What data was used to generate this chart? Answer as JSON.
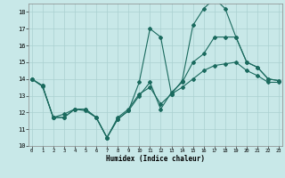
{
  "xlabel": "Humidex (Indice chaleur)",
  "bg_color": "#c8e8e8",
  "grid_color": "#aad0d0",
  "line_color": "#1a6a5e",
  "xlim": [
    0,
    23
  ],
  "ylim": [
    10,
    18.5
  ],
  "yticks": [
    10,
    11,
    12,
    13,
    14,
    15,
    16,
    17,
    18
  ],
  "xticks": [
    0,
    1,
    2,
    3,
    4,
    5,
    6,
    7,
    8,
    9,
    10,
    11,
    12,
    13,
    14,
    15,
    16,
    17,
    18,
    19,
    20,
    21,
    22,
    23
  ],
  "line1_x": [
    0,
    1,
    2,
    3,
    4,
    5,
    6,
    7,
    8,
    9,
    10,
    11,
    12,
    13,
    14,
    15,
    16,
    17,
    18,
    19,
    20,
    21,
    22,
    23
  ],
  "line1_y": [
    14.0,
    13.6,
    11.7,
    11.7,
    12.2,
    12.2,
    11.7,
    10.5,
    11.6,
    12.1,
    13.8,
    17.0,
    16.5,
    13.1,
    13.9,
    17.2,
    18.2,
    18.8,
    18.2,
    16.5,
    15.0,
    14.7,
    14.0,
    13.9
  ],
  "line2_x": [
    0,
    1,
    2,
    3,
    4,
    5,
    6,
    7,
    8,
    9,
    10,
    11,
    12,
    13,
    14,
    15,
    16,
    17,
    18,
    19,
    20,
    21,
    22,
    23
  ],
  "line2_y": [
    14.0,
    13.6,
    11.7,
    11.7,
    12.2,
    12.2,
    11.7,
    10.5,
    11.6,
    12.1,
    13.0,
    13.8,
    12.2,
    13.2,
    13.8,
    15.0,
    15.5,
    16.5,
    16.5,
    16.5,
    15.0,
    14.7,
    14.0,
    13.9
  ],
  "line3_x": [
    0,
    1,
    2,
    3,
    4,
    5,
    6,
    7,
    8,
    9,
    10,
    11,
    12,
    13,
    14,
    15,
    16,
    17,
    18,
    19,
    20,
    21,
    22,
    23
  ],
  "line3_y": [
    14.0,
    13.55,
    11.7,
    11.9,
    12.2,
    12.1,
    11.7,
    10.5,
    11.7,
    12.2,
    13.1,
    13.5,
    12.5,
    13.1,
    13.5,
    14.0,
    14.5,
    14.8,
    14.9,
    15.0,
    14.5,
    14.2,
    13.8,
    13.8
  ]
}
